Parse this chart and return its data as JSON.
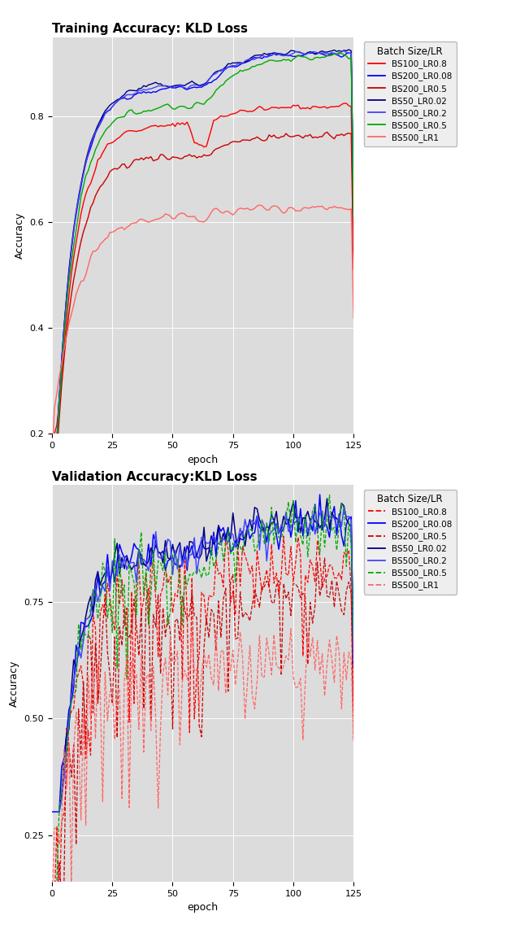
{
  "title_top": "Training Accuracy: KLD Loss",
  "title_bottom": "Validation Accuracy:KLD Loss",
  "xlabel": "epoch",
  "ylabel": "Accuracy",
  "legend_title": "Batch Size/LR",
  "legend_labels": [
    "BS100_LR0.8",
    "BS200_LR0.08",
    "BS200_LR0.5",
    "BS50_LR0.02",
    "BS500_LR0.2",
    "BS500_LR0.5",
    "BS500_LR1"
  ],
  "colors": {
    "BS100_LR0.8": "#FF0000",
    "BS200_LR0.08": "#0000FF",
    "BS200_LR0.5": "#CC0000",
    "BS50_LR0.02": "#000080",
    "BS500_LR0.2": "#4444FF",
    "BS500_LR0.5": "#00AA00",
    "BS500_LR1": "#FF6666"
  },
  "train_solid": [
    "BS200_LR0.08",
    "BS50_LR0.02",
    "BS500_LR0.2",
    "BS500_LR0.5"
  ],
  "val_solid": [
    "BS200_LR0.08",
    "BS50_LR0.02",
    "BS500_LR0.2"
  ],
  "xlim": [
    0,
    125
  ],
  "train_ylim": [
    0.2,
    0.95
  ],
  "val_ylim": [
    0.15,
    1.0
  ],
  "bg_color": "#DCDCDC",
  "fig_bg": "#FFFFFF",
  "grid_color": "#FFFFFF"
}
